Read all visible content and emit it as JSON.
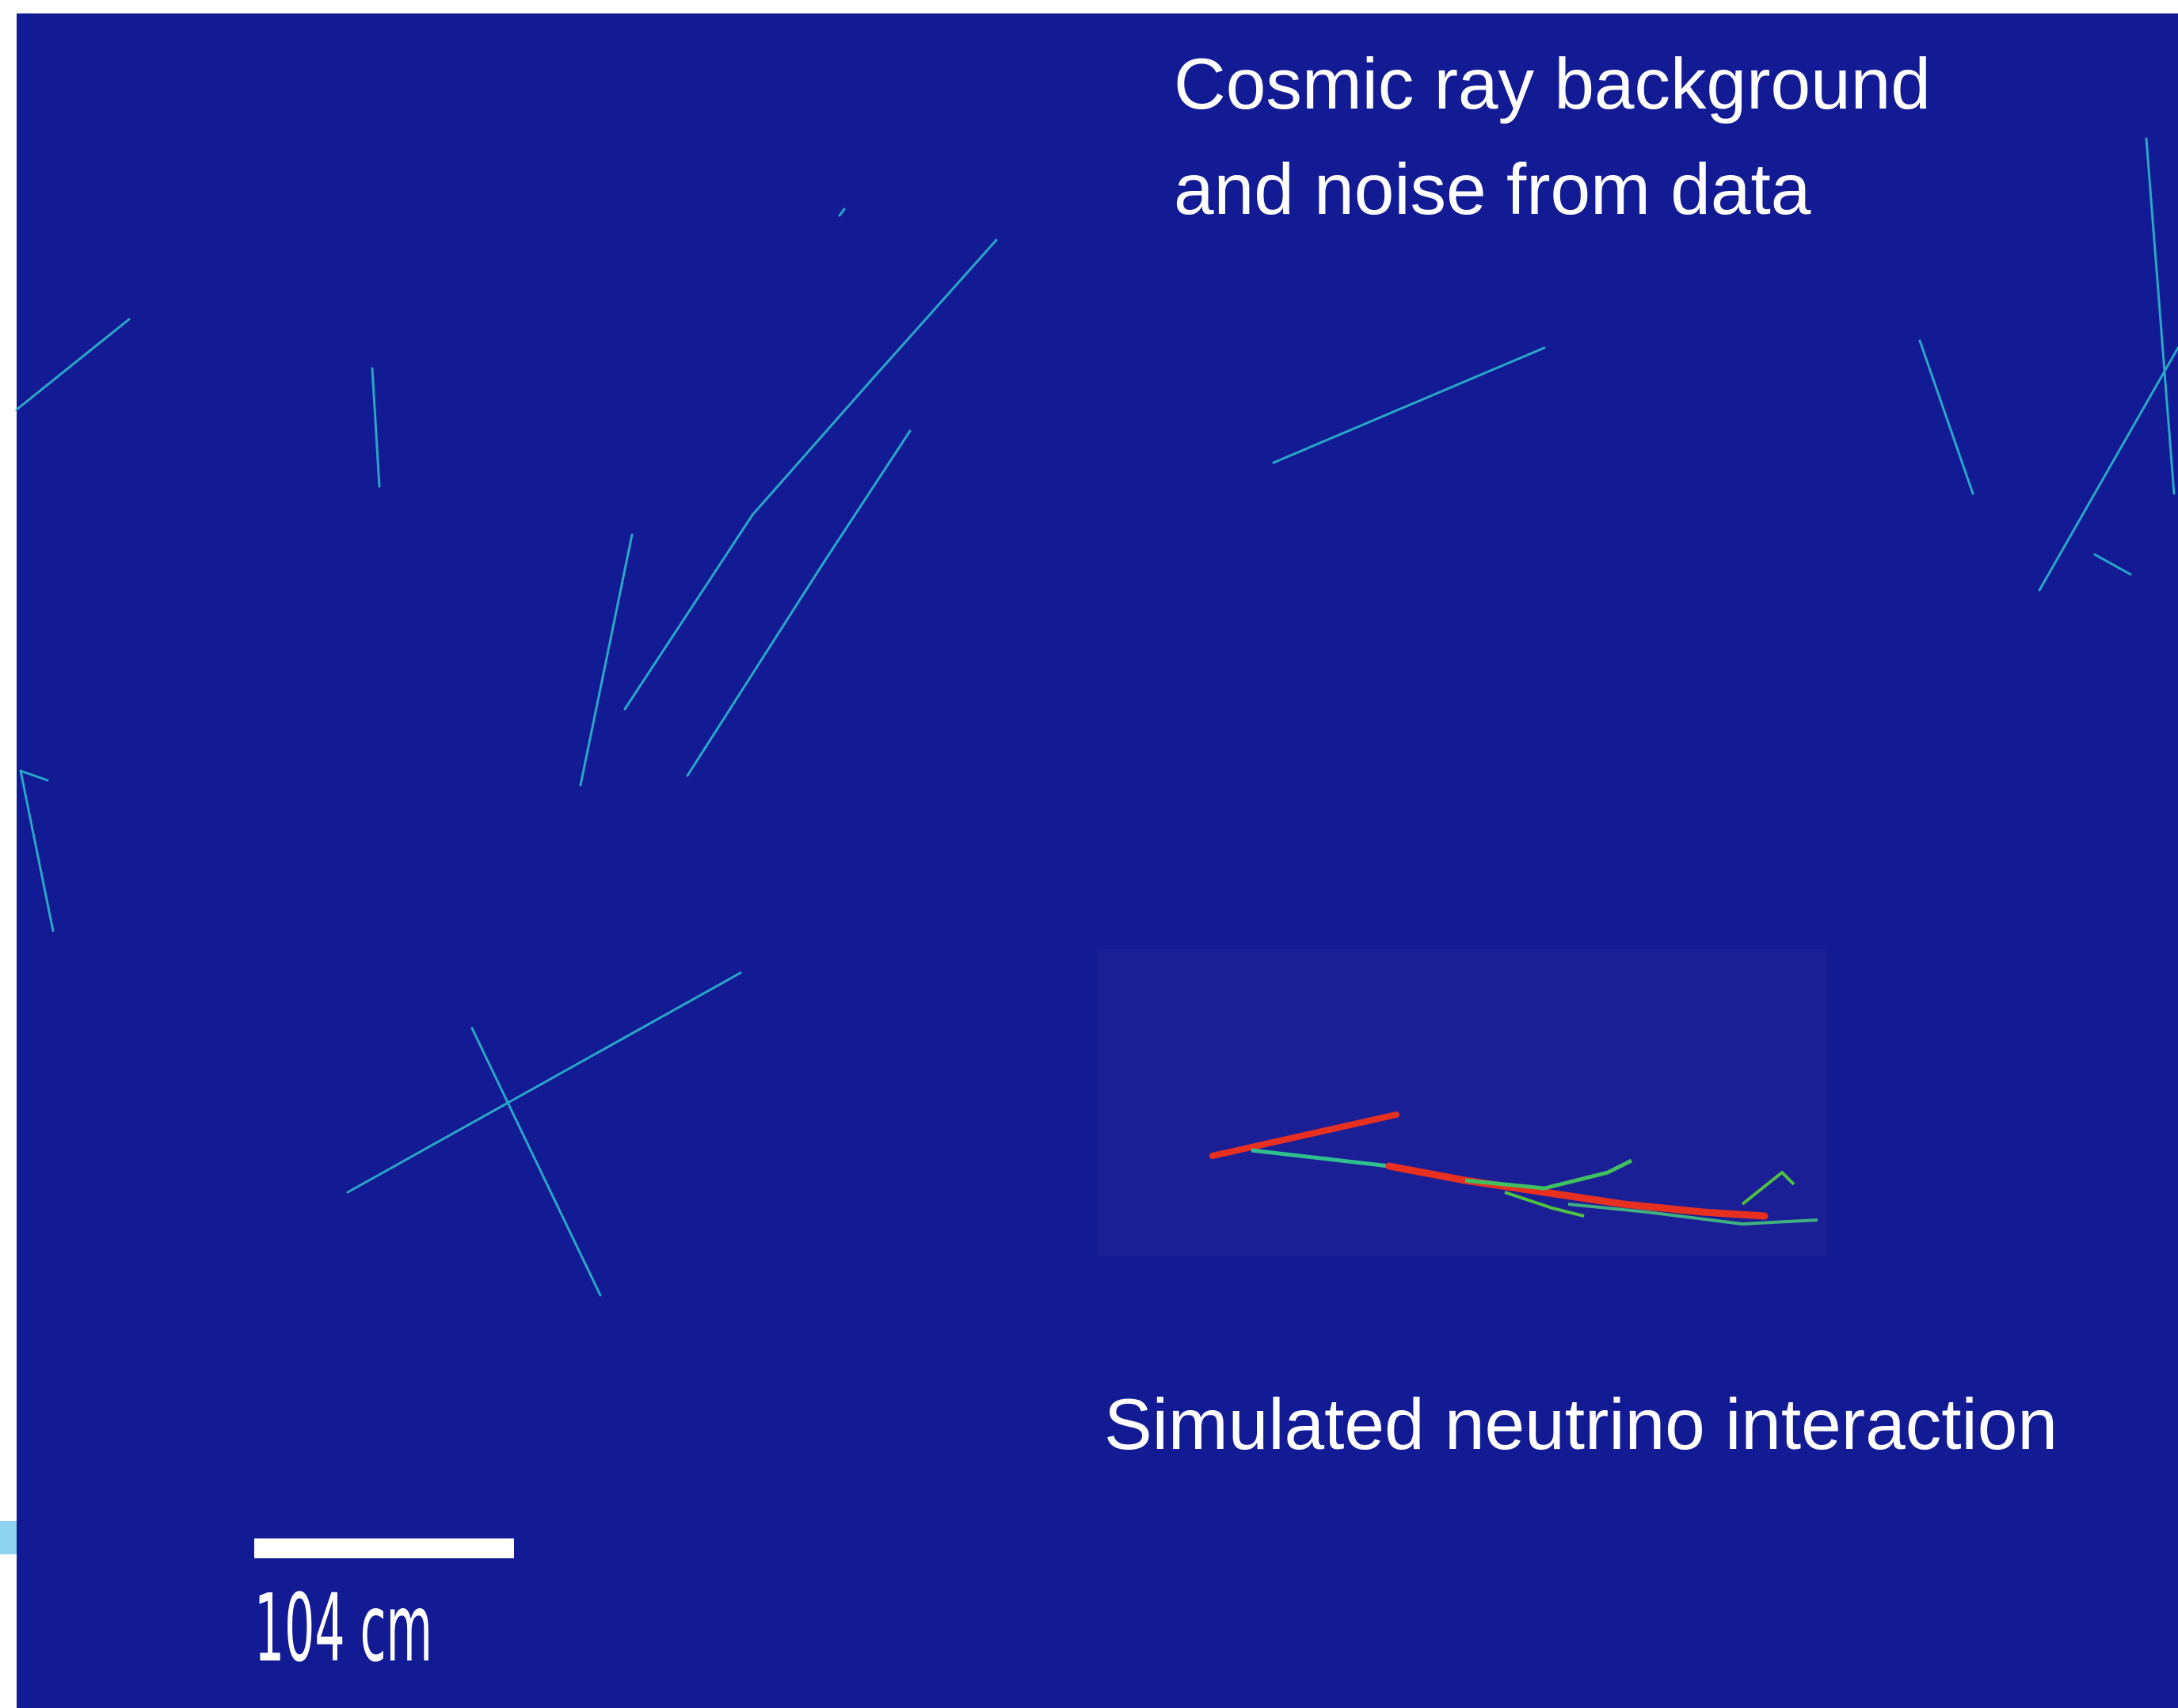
{
  "annotations": {
    "top": [
      "Cosmic ray background",
      "and noise from data"
    ],
    "bottom": "Simulated neutrino interaction"
  },
  "scale_bar": {
    "label": "104 cm"
  }
}
